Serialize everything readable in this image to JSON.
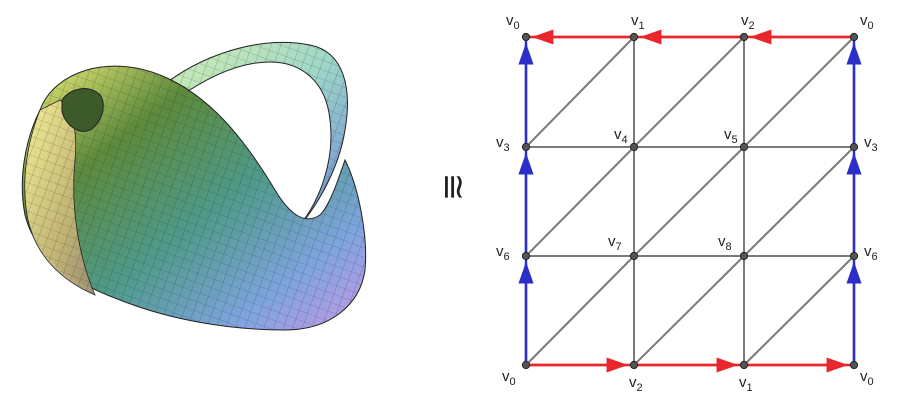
{
  "relation_symbol": "≅",
  "colors": {
    "red_edge": "#e8262b",
    "blue_edge": "#2b2fc8",
    "grid_edge": "#7a7a7a",
    "vertex": "#555555"
  },
  "vertices": [
    {
      "id": "top-left-v0",
      "letter": "v",
      "index": "0"
    },
    {
      "id": "top-v1",
      "letter": "v",
      "index": "1"
    },
    {
      "id": "top-v2",
      "letter": "v",
      "index": "2"
    },
    {
      "id": "top-right-v0",
      "letter": "v",
      "index": "0"
    },
    {
      "id": "left-v3",
      "letter": "v",
      "index": "3"
    },
    {
      "id": "center-v4",
      "letter": "v",
      "index": "4"
    },
    {
      "id": "center-v5",
      "letter": "v",
      "index": "5"
    },
    {
      "id": "right-v3",
      "letter": "v",
      "index": "3"
    },
    {
      "id": "left-v6",
      "letter": "v",
      "index": "6"
    },
    {
      "id": "center-v7",
      "letter": "v",
      "index": "7"
    },
    {
      "id": "center-v8",
      "letter": "v",
      "index": "8"
    },
    {
      "id": "right-v6",
      "letter": "v",
      "index": "6"
    },
    {
      "id": "bottom-left-v0",
      "letter": "v",
      "index": "0"
    },
    {
      "id": "bottom-v2",
      "letter": "v",
      "index": "2"
    },
    {
      "id": "bottom-v1",
      "letter": "v",
      "index": "1"
    },
    {
      "id": "bottom-right-v0",
      "letter": "v",
      "index": "0"
    }
  ]
}
